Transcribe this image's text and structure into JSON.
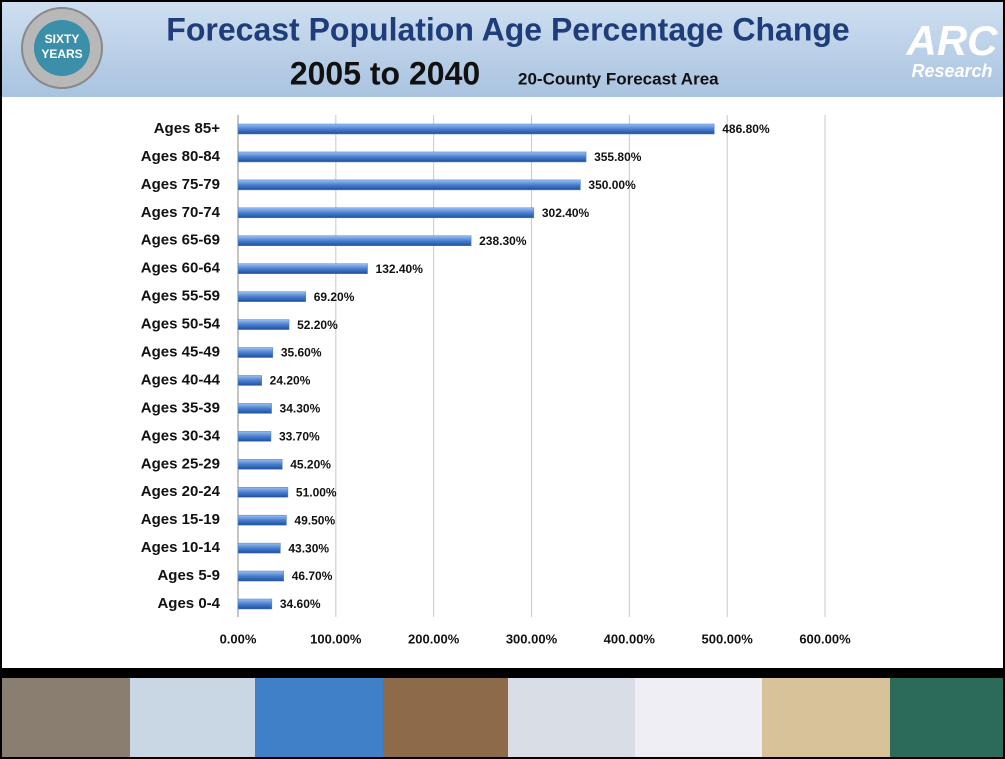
{
  "header": {
    "title": "Forecast Population Age Percentage Change",
    "title_line2": "2005 to 2040",
    "subtitle": "20-County Forecast Area",
    "badge": [
      "SIXTY",
      "YEARS"
    ],
    "logo": "ARC",
    "logo_sub": "Research"
  },
  "chart_data": {
    "type": "hbar",
    "categories": [
      "Ages 85+",
      "Ages 80-84",
      "Ages 75-79",
      "Ages 70-74",
      "Ages 65-69",
      "Ages 60-64",
      "Ages 55-59",
      "Ages 50-54",
      "Ages 45-49",
      "Ages 40-44",
      "Ages 35-39",
      "Ages 30-34",
      "Ages 25-29",
      "Ages 20-24",
      "Ages 15-19",
      "Ages 10-14",
      "Ages 5-9",
      "Ages 0-4"
    ],
    "values": [
      486.8,
      355.8,
      350,
      302.4,
      238.3,
      132.4,
      69.2,
      52.2,
      35.6,
      24.2,
      34.3,
      33.7,
      45.2,
      51,
      49.5,
      43.3,
      46.7,
      34.6
    ],
    "value_labels": [
      "486.80%",
      "355.80%",
      "350.00%",
      "302.40%",
      "238.30%",
      "132.40%",
      "69.20%",
      "52.20%",
      "35.60%",
      "24.20%",
      "34.30%",
      "33.70%",
      "45.20%",
      "51.00%",
      "49.50%",
      "43.30%",
      "46.70%",
      "34.60%"
    ],
    "color": "#4a7fd0",
    "xlim": [
      0,
      600
    ],
    "xticks": [
      {
        "value": 0,
        "label": "0.00%"
      },
      {
        "value": 100,
        "label": "100.00%"
      },
      {
        "value": 200,
        "label": "200.00%"
      },
      {
        "value": 300,
        "label": "300.00%"
      },
      {
        "value": 400,
        "label": "400.00%"
      },
      {
        "value": 500,
        "label": "500.00%"
      },
      {
        "value": 600,
        "label": "600.00%"
      }
    ],
    "grid": true
  }
}
